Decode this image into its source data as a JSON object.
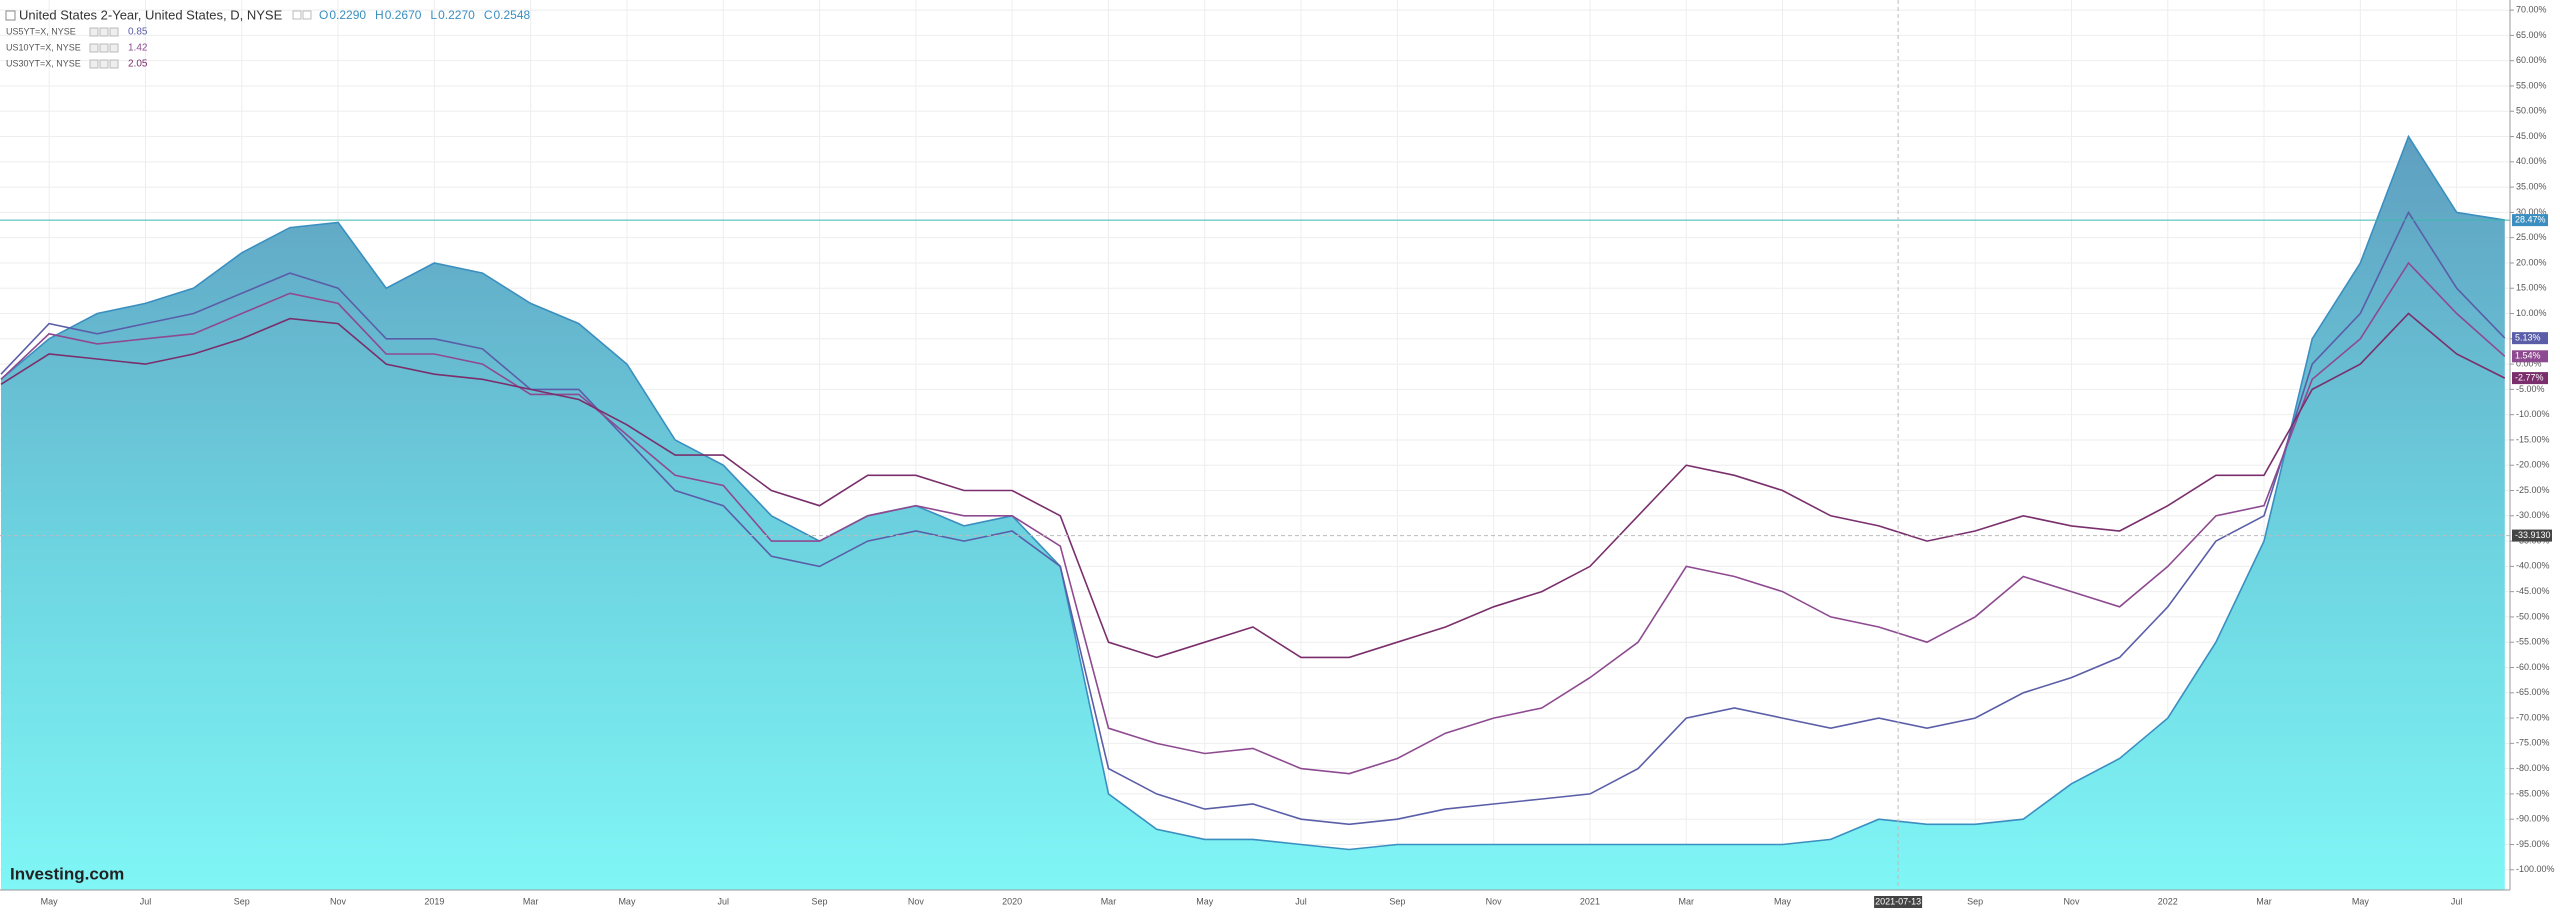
{
  "chart_data": {
    "type": "line",
    "title": "United States 2-Year, United States, D, NYSE",
    "ohlc": [
      {
        "key": "O",
        "value": "0.2290"
      },
      {
        "key": "H",
        "value": "0.2670"
      },
      {
        "key": "L",
        "value": "0.2270"
      },
      {
        "key": "C",
        "value": "0.2548"
      }
    ],
    "logo": "Investing.com",
    "x": [
      "2018-04",
      "2018-05",
      "2018-06",
      "2018-07",
      "2018-08",
      "2018-09",
      "2018-10",
      "2018-11",
      "2018-12",
      "2019-01",
      "2019-02",
      "2019-03",
      "2019-04",
      "2019-05",
      "2019-06",
      "2019-07",
      "2019-08",
      "2019-09",
      "2019-10",
      "2019-11",
      "2019-12",
      "2020-01",
      "2020-02",
      "2020-03",
      "2020-04",
      "2020-05",
      "2020-06",
      "2020-07",
      "2020-08",
      "2020-09",
      "2020-10",
      "2020-11",
      "2020-12",
      "2021-01",
      "2021-02",
      "2021-03",
      "2021-04",
      "2021-05",
      "2021-06",
      "2021-07",
      "2021-08",
      "2021-09",
      "2021-10",
      "2021-11",
      "2021-12",
      "2022-01",
      "2022-02",
      "2022-03",
      "2022-04",
      "2022-05",
      "2022-06",
      "2022-07",
      "2022-08"
    ],
    "series": [
      {
        "name": "United States 2-Year",
        "kind": "area",
        "color": "#3a8fc0",
        "last_value_label": "28.47%",
        "values": [
          -3,
          5,
          10,
          12,
          15,
          22,
          27,
          28,
          15,
          20,
          18,
          12,
          8,
          0,
          -15,
          -20,
          -30,
          -35,
          -30,
          -28,
          -32,
          -30,
          -40,
          -85,
          -92,
          -94,
          -94,
          -95,
          -96,
          -95,
          -95,
          -95,
          -95,
          -95,
          -95,
          -95,
          -95,
          -95,
          -94,
          -90,
          -91,
          -91,
          -90,
          -83,
          -78,
          -70,
          -55,
          -35,
          5,
          20,
          45,
          30,
          28.47
        ]
      },
      {
        "name": "US5YT=X, NYSE",
        "legend_value": "0.85",
        "kind": "line",
        "color": "#5a5ea8",
        "last_value_label": "5.13%",
        "values": [
          -2,
          8,
          6,
          8,
          10,
          14,
          18,
          15,
          5,
          5,
          3,
          -5,
          -5,
          -15,
          -25,
          -28,
          -38,
          -40,
          -35,
          -33,
          -35,
          -33,
          -40,
          -80,
          -85,
          -88,
          -87,
          -90,
          -91,
          -90,
          -88,
          -87,
          -86,
          -85,
          -80,
          -70,
          -68,
          -70,
          -72,
          -70,
          -72,
          -70,
          -65,
          -62,
          -58,
          -48,
          -35,
          -30,
          0,
          10,
          30,
          15,
          5.13
        ]
      },
      {
        "name": "US10YT=X, NYSE",
        "legend_value": "1.42",
        "kind": "line",
        "color": "#8e4a90",
        "last_value_label": "1.54%",
        "values": [
          -3,
          6,
          4,
          5,
          6,
          10,
          14,
          12,
          2,
          2,
          0,
          -6,
          -6,
          -14,
          -22,
          -24,
          -35,
          -35,
          -30,
          -28,
          -30,
          -30,
          -36,
          -72,
          -75,
          -77,
          -76,
          -80,
          -81,
          -78,
          -73,
          -70,
          -68,
          -62,
          -55,
          -40,
          -42,
          -45,
          -50,
          -52,
          -55,
          -50,
          -42,
          -45,
          -48,
          -40,
          -30,
          -28,
          -3,
          5,
          20,
          10,
          1.54
        ]
      },
      {
        "name": "US30YT=X, NYSE",
        "legend_value": "2.05",
        "kind": "line",
        "color": "#7a2f6c",
        "last_value_label": "-2.77%",
        "values": [
          -4,
          2,
          1,
          0,
          2,
          5,
          9,
          8,
          0,
          -2,
          -3,
          -5,
          -7,
          -12,
          -18,
          -18,
          -25,
          -28,
          -22,
          -22,
          -25,
          -25,
          -30,
          -55,
          -58,
          -55,
          -52,
          -58,
          -58,
          -55,
          -52,
          -48,
          -45,
          -40,
          -30,
          -20,
          -22,
          -25,
          -30,
          -32,
          -35,
          -33,
          -30,
          -32,
          -33,
          -28,
          -22,
          -22,
          -5,
          0,
          10,
          2,
          -2.77
        ]
      }
    ],
    "ylim": [
      -104,
      72
    ],
    "yticks": [
      {
        "value": 70,
        "label": "70.00%"
      },
      {
        "value": 65,
        "label": "65.00%"
      },
      {
        "value": 60,
        "label": "60.00%"
      },
      {
        "value": 55,
        "label": "55.00%"
      },
      {
        "value": 50,
        "label": "50.00%"
      },
      {
        "value": 45,
        "label": "45.00%"
      },
      {
        "value": 40,
        "label": "40.00%"
      },
      {
        "value": 35,
        "label": "35.00%"
      },
      {
        "value": 30,
        "label": "30.00%"
      },
      {
        "value": 25,
        "label": "25.00%"
      },
      {
        "value": 20,
        "label": "20.00%"
      },
      {
        "value": 15,
        "label": "15.00%"
      },
      {
        "value": 10,
        "label": "10.00%"
      },
      {
        "value": 5,
        "label": "5.00%"
      },
      {
        "value": 0,
        "label": "0.00%"
      },
      {
        "value": -5,
        "label": "-5.00%"
      },
      {
        "value": -10,
        "label": "-10.00%"
      },
      {
        "value": -15,
        "label": "-15.00%"
      },
      {
        "value": -20,
        "label": "-20.00%"
      },
      {
        "value": -25,
        "label": "-25.00%"
      },
      {
        "value": -30,
        "label": "-30.00%"
      },
      {
        "value": -35,
        "label": "-35.00%"
      },
      {
        "value": -40,
        "label": "-40.00%"
      },
      {
        "value": -45,
        "label": "-45.00%"
      },
      {
        "value": -50,
        "label": "-50.00%"
      },
      {
        "value": -55,
        "label": "-55.00%"
      },
      {
        "value": -60,
        "label": "-60.00%"
      },
      {
        "value": -65,
        "label": "-65.00%"
      },
      {
        "value": -70,
        "label": "-70.00%"
      },
      {
        "value": -75,
        "label": "-75.00%"
      },
      {
        "value": -80,
        "label": "-80.00%"
      },
      {
        "value": -85,
        "label": "-85.00%"
      },
      {
        "value": -90,
        "label": "-90.00%"
      },
      {
        "value": -95,
        "label": "-95.00%"
      },
      {
        "value": -100,
        "label": "-100.00%"
      }
    ],
    "xticks": [
      {
        "value": "2018-05",
        "label": "May"
      },
      {
        "value": "2018-07",
        "label": "Jul"
      },
      {
        "value": "2018-09",
        "label": "Sep"
      },
      {
        "value": "2018-11",
        "label": "Nov"
      },
      {
        "value": "2019-01",
        "label": "2019"
      },
      {
        "value": "2019-03",
        "label": "Mar"
      },
      {
        "value": "2019-05",
        "label": "May"
      },
      {
        "value": "2019-07",
        "label": "Jul"
      },
      {
        "value": "2019-09",
        "label": "Sep"
      },
      {
        "value": "2019-11",
        "label": "Nov"
      },
      {
        "value": "2020-01",
        "label": "2020"
      },
      {
        "value": "2020-03",
        "label": "Mar"
      },
      {
        "value": "2020-05",
        "label": "May"
      },
      {
        "value": "2020-07",
        "label": "Jul"
      },
      {
        "value": "2020-09",
        "label": "Sep"
      },
      {
        "value": "2020-11",
        "label": "Nov"
      },
      {
        "value": "2021-01",
        "label": "2021"
      },
      {
        "value": "2021-03",
        "label": "Mar"
      },
      {
        "value": "2021-05",
        "label": "May"
      },
      {
        "value": "2021-09",
        "label": "Sep"
      },
      {
        "value": "2021-11",
        "label": "Nov"
      },
      {
        "value": "2022-01",
        "label": "2022"
      },
      {
        "value": "2022-03",
        "label": "Mar"
      },
      {
        "value": "2022-05",
        "label": "May"
      },
      {
        "value": "2022-07",
        "label": "Jul"
      }
    ],
    "crosshair": {
      "x": "2021-07-13",
      "y": {
        "value": -33.913,
        "label": "-33.9130"
      }
    },
    "reference_line": 28.47,
    "grid": true
  }
}
